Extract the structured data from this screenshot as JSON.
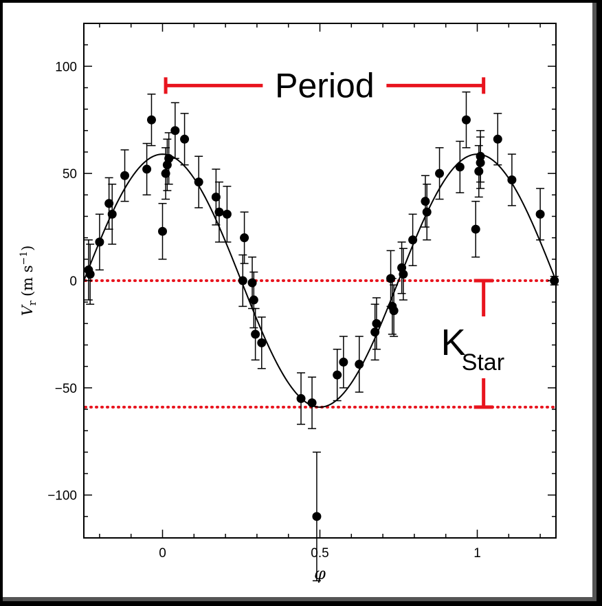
{
  "chart_data": {
    "type": "scatter",
    "title": "",
    "xlabel": "φ",
    "ylabel_main": "V",
    "ylabel_sub": "r",
    "ylabel_units": "(m s",
    "ylabel_units_exp": "−1",
    "ylabel_units_close": ")",
    "xlim": [
      -0.25,
      1.25
    ],
    "ylim": [
      -120,
      120
    ],
    "x_ticks": [
      0,
      0.5,
      1
    ],
    "x_tick_labels": [
      "0",
      "0.5",
      "1"
    ],
    "y_ticks": [
      -100,
      -50,
      0,
      50,
      100
    ],
    "y_tick_labels": [
      "−100",
      "−50",
      "0",
      "50",
      "100"
    ],
    "grid": false,
    "fit": {
      "type": "sinusoid",
      "amplitude": 59,
      "period": 1,
      "peak_phase": 0
    },
    "points": [
      {
        "x": -0.235,
        "y": 5,
        "err": 14
      },
      {
        "x": -0.23,
        "y": 3,
        "err": 14
      },
      {
        "x": -0.2,
        "y": 18,
        "err": 13
      },
      {
        "x": -0.17,
        "y": 36,
        "err": 12
      },
      {
        "x": -0.16,
        "y": 31,
        "err": 14
      },
      {
        "x": -0.12,
        "y": 49,
        "err": 12
      },
      {
        "x": -0.05,
        "y": 52,
        "err": 12
      },
      {
        "x": -0.035,
        "y": 75,
        "err": 12
      },
      {
        "x": 0.0,
        "y": 23,
        "err": 13
      },
      {
        "x": 0.01,
        "y": 50,
        "err": 12
      },
      {
        "x": 0.015,
        "y": 54,
        "err": 12
      },
      {
        "x": 0.02,
        "y": 57,
        "err": 12
      },
      {
        "x": 0.04,
        "y": 70,
        "err": 13
      },
      {
        "x": 0.07,
        "y": 66,
        "err": 12
      },
      {
        "x": 0.115,
        "y": 46,
        "err": 12
      },
      {
        "x": 0.17,
        "y": 39,
        "err": 13
      },
      {
        "x": 0.18,
        "y": 32,
        "err": 14
      },
      {
        "x": 0.205,
        "y": 31,
        "err": 13
      },
      {
        "x": 0.255,
        "y": 0,
        "err": 12
      },
      {
        "x": 0.26,
        "y": 20,
        "err": 12
      },
      {
        "x": 0.285,
        "y": -1,
        "err": 12
      },
      {
        "x": 0.29,
        "y": -9,
        "err": 13
      },
      {
        "x": 0.295,
        "y": -25,
        "err": 12
      },
      {
        "x": 0.315,
        "y": -29,
        "err": 12
      },
      {
        "x": 0.44,
        "y": -55,
        "err": 12
      },
      {
        "x": 0.475,
        "y": -57,
        "err": 12
      },
      {
        "x": 0.49,
        "y": -110,
        "err": 30
      },
      {
        "x": 0.555,
        "y": -44,
        "err": 12
      },
      {
        "x": 0.575,
        "y": -38,
        "err": 12
      },
      {
        "x": 0.625,
        "y": -39,
        "err": 13
      },
      {
        "x": 0.675,
        "y": -24,
        "err": 13
      },
      {
        "x": 0.68,
        "y": -20,
        "err": 12
      },
      {
        "x": 0.725,
        "y": 1,
        "err": 13
      },
      {
        "x": 0.73,
        "y": -12,
        "err": 13
      },
      {
        "x": 0.735,
        "y": -14,
        "err": 12
      },
      {
        "x": 0.76,
        "y": 6,
        "err": 12
      },
      {
        "x": 0.765,
        "y": 3,
        "err": 12
      },
      {
        "x": 0.795,
        "y": 19,
        "err": 12
      },
      {
        "x": 0.835,
        "y": 37,
        "err": 12
      },
      {
        "x": 0.84,
        "y": 32,
        "err": 13
      },
      {
        "x": 0.88,
        "y": 50,
        "err": 12
      },
      {
        "x": 0.945,
        "y": 53,
        "err": 12
      },
      {
        "x": 0.965,
        "y": 75,
        "err": 13
      },
      {
        "x": 0.995,
        "y": 24,
        "err": 13
      },
      {
        "x": 1.005,
        "y": 51,
        "err": 12
      },
      {
        "x": 1.01,
        "y": 55,
        "err": 12
      },
      {
        "x": 1.01,
        "y": 58,
        "err": 12
      },
      {
        "x": 1.065,
        "y": 66,
        "err": 12
      },
      {
        "x": 1.11,
        "y": 47,
        "err": 12
      },
      {
        "x": 1.2,
        "y": 31,
        "err": 12
      },
      {
        "x": 1.245,
        "y": 0,
        "err": 2
      }
    ],
    "annotations": {
      "period_label": "Period",
      "period_start": 0.01,
      "period_end": 1.02,
      "period_y": 91,
      "k_label": "K",
      "k_sub": "Star",
      "k_x": 1.02,
      "k_top": 0,
      "k_bottom": -59,
      "ref_lines": [
        0,
        -59
      ],
      "annotation_color": "#e8141e"
    }
  }
}
